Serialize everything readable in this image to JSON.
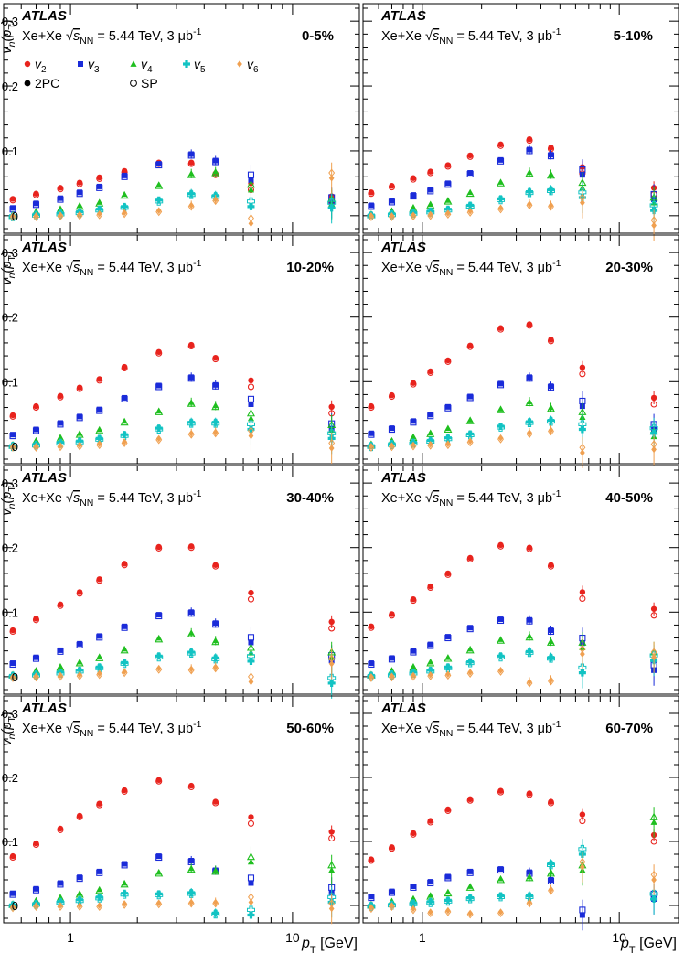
{
  "figure": {
    "experiment": "ATLAS",
    "system_label": "Xe+Xe",
    "energy_text": "= 5.44 TeV, 3 μb",
    "lumi_exp": "-1",
    "sqrt_s": "s",
    "sqrt_sub": "NN",
    "legend": {
      "v2": "v",
      "v2_sub": "2",
      "v3": "v",
      "v3_sub": "3",
      "v4": "v",
      "v4_sub": "4",
      "v5": "v",
      "v5_sub": "5",
      "v6": "v",
      "v6_sub": "6",
      "method_2pc": "2PC",
      "method_sp": "SP"
    },
    "ylabel_main": "v",
    "ylabel_n": "n",
    "ylabel_arg": "(p",
    "ylabel_argsub": "T",
    "ylabel_close": ")",
    "xlabel_main": "p",
    "xlabel_sub": "T",
    "xlabel_unit": "[GeV]",
    "colors": {
      "v2": "#e8231d",
      "v3": "#1a2bd9",
      "v4": "#1fbf1f",
      "v5": "#12c3c3",
      "v6": "#f0a050"
    }
  },
  "chart_data": {
    "type": "scatter",
    "x_scale": "log",
    "xlim": [
      0.5,
      20
    ],
    "ylim": [
      -0.02,
      0.32
    ],
    "xticks": [
      1,
      10
    ],
    "xtick_labels": [
      "1",
      "10"
    ],
    "yticks": [
      0,
      0.1,
      0.2,
      0.3
    ],
    "ytick_labels": [
      "0",
      "0.1",
      "0.2",
      "0.3"
    ],
    "pt": [
      0.55,
      0.7,
      0.9,
      1.1,
      1.35,
      1.75,
      2.5,
      3.5,
      4.5,
      6.5,
      15
    ],
    "panels": [
      {
        "centrality": "0-5%",
        "series": {
          "v2": [
            0.026,
            0.034,
            0.043,
            0.051,
            0.059,
            0.069,
            0.082,
            0.082,
            0.065,
            0.05,
            0.03
          ],
          "v3": [
            0.012,
            0.019,
            0.027,
            0.036,
            0.045,
            0.062,
            0.08,
            0.095,
            0.085,
            0.055,
            0.02
          ],
          "v4": [
            0.002,
            0.007,
            0.011,
            0.016,
            0.021,
            0.033,
            0.048,
            0.065,
            0.068,
            0.04,
            0.018
          ],
          "v5": [
            0.0,
            0.002,
            0.004,
            0.006,
            0.01,
            0.014,
            0.024,
            0.034,
            0.031,
            0.014,
            0.012
          ],
          "v6": [
            0.0,
            0.0,
            0.001,
            0.002,
            0.003,
            0.005,
            0.008,
            0.016,
            0.025,
            -0.012,
            0.058
          ]
        }
      },
      {
        "centrality": "5-10%",
        "series": {
          "v2": [
            0.036,
            0.046,
            0.058,
            0.068,
            0.078,
            0.093,
            0.11,
            0.118,
            0.105,
            0.075,
            0.043
          ],
          "v3": [
            0.016,
            0.023,
            0.032,
            0.04,
            0.05,
            0.066,
            0.086,
            0.102,
            0.094,
            0.063,
            0.025
          ],
          "v4": [
            0.003,
            0.008,
            0.013,
            0.018,
            0.024,
            0.036,
            0.052,
            0.067,
            0.064,
            0.043,
            0.02
          ],
          "v5": [
            0.001,
            0.003,
            0.005,
            0.007,
            0.01,
            0.016,
            0.026,
            0.037,
            0.04,
            0.028,
            0.008
          ],
          "v6": [
            0.0,
            0.0,
            0.001,
            0.002,
            0.004,
            0.007,
            0.012,
            0.018,
            0.016,
            0.02,
            -0.015
          ]
        }
      },
      {
        "centrality": "10-20%",
        "series": {
          "v2": [
            0.048,
            0.062,
            0.078,
            0.091,
            0.104,
            0.123,
            0.146,
            0.157,
            0.137,
            0.102,
            0.061
          ],
          "v3": [
            0.018,
            0.026,
            0.036,
            0.046,
            0.057,
            0.075,
            0.094,
            0.107,
            0.095,
            0.065,
            0.027
          ],
          "v4": [
            0.003,
            0.009,
            0.014,
            0.02,
            0.026,
            0.039,
            0.055,
            0.068,
            0.063,
            0.043,
            0.025
          ],
          "v5": [
            0.001,
            0.003,
            0.006,
            0.008,
            0.012,
            0.018,
            0.028,
            0.037,
            0.037,
            0.026,
            0.012
          ],
          "v6": [
            0.0,
            0.0,
            0.001,
            0.002,
            0.004,
            0.007,
            0.012,
            0.02,
            0.022,
            0.016,
            -0.003
          ]
        }
      },
      {
        "centrality": "20-30%",
        "series": {
          "v2": [
            0.062,
            0.079,
            0.098,
            0.116,
            0.133,
            0.156,
            0.183,
            0.189,
            0.165,
            0.122,
            0.075
          ],
          "v3": [
            0.02,
            0.028,
            0.039,
            0.049,
            0.061,
            0.077,
            0.097,
            0.107,
            0.093,
            0.062,
            0.026
          ],
          "v4": [
            0.004,
            0.009,
            0.015,
            0.021,
            0.028,
            0.041,
            0.058,
            0.069,
            0.06,
            0.045,
            0.015
          ],
          "v5": [
            0.001,
            0.004,
            0.006,
            0.009,
            0.013,
            0.019,
            0.031,
            0.038,
            0.04,
            0.026,
            0.02
          ],
          "v6": [
            0.0,
            0.001,
            0.002,
            0.003,
            0.004,
            0.008,
            0.013,
            0.021,
            0.025,
            -0.01,
            -0.005
          ]
        }
      },
      {
        "centrality": "30-40%",
        "series": {
          "v2": [
            0.072,
            0.09,
            0.112,
            0.131,
            0.151,
            0.175,
            0.201,
            0.202,
            0.173,
            0.13,
            0.085
          ],
          "v3": [
            0.021,
            0.03,
            0.041,
            0.051,
            0.063,
            0.078,
            0.096,
            0.1,
            0.083,
            0.053,
            0.025
          ],
          "v4": [
            0.004,
            0.01,
            0.016,
            0.023,
            0.031,
            0.043,
            0.06,
            0.068,
            0.056,
            0.037,
            0.03
          ],
          "v5": [
            0.002,
            0.004,
            0.007,
            0.01,
            0.015,
            0.022,
            0.032,
            0.038,
            0.029,
            0.024,
            -0.01
          ],
          "v6": [
            0.0,
            0.001,
            0.002,
            0.003,
            0.005,
            0.008,
            0.013,
            0.012,
            0.015,
            -0.008,
            0.02
          ]
        }
      },
      {
        "centrality": "40-50%",
        "series": {
          "v2": [
            0.078,
            0.097,
            0.12,
            0.14,
            0.16,
            0.184,
            0.204,
            0.2,
            0.173,
            0.131,
            0.105
          ],
          "v3": [
            0.021,
            0.029,
            0.04,
            0.05,
            0.062,
            0.076,
            0.089,
            0.088,
            0.072,
            0.052,
            0.01
          ],
          "v4": [
            0.004,
            0.01,
            0.016,
            0.023,
            0.03,
            0.043,
            0.058,
            0.063,
            0.055,
            0.045,
            0.03
          ],
          "v5": [
            0.002,
            0.004,
            0.007,
            0.01,
            0.015,
            0.023,
            0.032,
            0.039,
            0.03,
            0.006,
            0.025
          ],
          "v6": [
            0.0,
            0.001,
            0.002,
            0.003,
            0.004,
            0.007,
            0.01,
            -0.008,
            -0.005,
            0.035,
            0.03
          ]
        }
      },
      {
        "centrality": "50-60%",
        "series": {
          "v2": [
            0.077,
            0.097,
            0.12,
            0.14,
            0.159,
            0.18,
            0.196,
            0.187,
            0.162,
            0.138,
            0.115
          ],
          "v3": [
            0.019,
            0.026,
            0.035,
            0.044,
            0.053,
            0.065,
            0.077,
            0.07,
            0.055,
            0.035,
            0.02
          ],
          "v4": [
            0.003,
            0.008,
            0.013,
            0.019,
            0.025,
            0.035,
            0.052,
            0.058,
            0.055,
            0.068,
            0.055
          ],
          "v5": [
            0.001,
            0.003,
            0.006,
            0.009,
            0.013,
            0.019,
            0.018,
            0.02,
            -0.012,
            -0.015,
            0.005
          ],
          "v6": [
            -0.002,
            0.0,
            0.0,
            0.0,
            0.0,
            0.003,
            0.004,
            0.005,
            0.005,
            0.005,
            -0.005
          ]
        }
      },
      {
        "centrality": "60-70%",
        "series": {
          "v2": [
            0.072,
            0.091,
            0.113,
            0.132,
            0.15,
            0.166,
            0.179,
            0.175,
            0.162,
            0.142,
            0.11
          ],
          "v3": [
            0.014,
            0.022,
            0.03,
            0.037,
            0.045,
            0.053,
            0.057,
            0.052,
            0.04,
            -0.015,
            0.01
          ],
          "v4": [
            0.002,
            0.007,
            0.011,
            0.016,
            0.021,
            0.03,
            0.042,
            0.045,
            0.052,
            0.055,
            0.13
          ],
          "v5": [
            0.0,
            0.002,
            0.004,
            0.006,
            0.008,
            0.012,
            0.015,
            0.015,
            0.065,
            0.08,
            0.01
          ],
          "v6": [
            -0.003,
            0.0,
            -0.005,
            -0.01,
            -0.008,
            -0.012,
            -0.01,
            0.005,
            0.025,
            0.06,
            0.04
          ]
        }
      }
    ]
  }
}
